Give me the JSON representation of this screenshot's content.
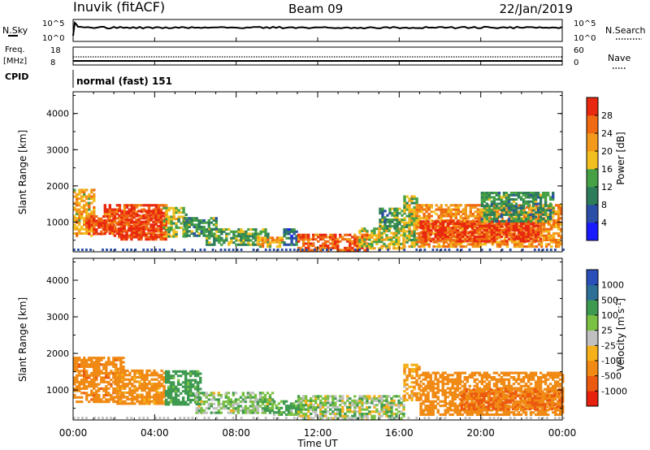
{
  "header": {
    "station": "Inuvik (fitACF)",
    "beam": "Beam 09",
    "date": "22/Jan/2019"
  },
  "top_panels": {
    "nsky_label": "N.Sky",
    "nsearch_label": "N.Search",
    "nsky_ticks": [
      "10^5",
      "10^0"
    ],
    "nsearch_ticks": [
      "10^5",
      "10^0"
    ],
    "freq_label": "Freq.",
    "freq_unit": "[MHz]",
    "freq_ticks": [
      "18",
      "8"
    ],
    "nave_label": "Nave",
    "nave_ticks": [
      "60",
      "0"
    ],
    "cpid_label": "CPID",
    "cpid_value": "normal (fast) 151"
  },
  "x_axis": {
    "label": "Time UT",
    "ticks": [
      "00:00",
      "04:00",
      "08:00",
      "12:00",
      "16:00",
      "20:00",
      "00:00"
    ]
  },
  "colors": {
    "power": [
      "#1a1aff",
      "#2b4fa6",
      "#2e7d5a",
      "#46a146",
      "#f2c01e",
      "#f39a1c",
      "#ef6a12",
      "#e8280f"
    ],
    "velocity": [
      "#e8200e",
      "#ec5a10",
      "#f08a14",
      "#f5b01a",
      "#c0c0c0",
      "#7ac043",
      "#3e9a50",
      "#2d6f96",
      "#2a4fb8"
    ]
  },
  "chart_data": [
    {
      "type": "heatmap",
      "title": "",
      "xlabel": "Time UT",
      "ylabel": "Slant Range [km]",
      "xlim": [
        0,
        24
      ],
      "ylim": [
        180,
        4600
      ],
      "yticks": [
        "1000",
        "2000",
        "3000",
        "4000"
      ],
      "colorbar": {
        "label": "Power [dB]",
        "ticks": [
          "4",
          "8",
          "12",
          "16",
          "20",
          "24",
          "28"
        ],
        "range": [
          0,
          32
        ]
      },
      "regions": [
        {
          "t": [
            0.0,
            1.0
          ],
          "r": [
            600,
            1900
          ],
          "value": 20
        },
        {
          "t": [
            0.6,
            2.0
          ],
          "r": [
            650,
            1150
          ],
          "value": 29
        },
        {
          "t": [
            1.5,
            4.6
          ],
          "r": [
            600,
            1500
          ],
          "value": 27
        },
        {
          "t": [
            2.2,
            4.5
          ],
          "r": [
            500,
            1300
          ],
          "value": 30
        },
        {
          "t": [
            4.4,
            5.6
          ],
          "r": [
            580,
            1400
          ],
          "value": 16
        },
        {
          "t": [
            5.4,
            7.0
          ],
          "r": [
            600,
            1100
          ],
          "value": 12
        },
        {
          "t": [
            6.5,
            9.5
          ],
          "r": [
            350,
            800
          ],
          "value": 13
        },
        {
          "t": [
            9.0,
            10.3
          ],
          "r": [
            300,
            600
          ],
          "value": 20
        },
        {
          "t": [
            10.3,
            11.0
          ],
          "r": [
            350,
            800
          ],
          "value": 8
        },
        {
          "t": [
            11.0,
            14.4
          ],
          "r": [
            200,
            650
          ],
          "value": 27
        },
        {
          "t": [
            14.0,
            16.2
          ],
          "r": [
            250,
            800
          ],
          "value": 18
        },
        {
          "t": [
            15.0,
            16.2
          ],
          "r": [
            800,
            1400
          ],
          "value": 12
        },
        {
          "t": [
            16.2,
            16.9
          ],
          "r": [
            300,
            1700
          ],
          "value": 16
        },
        {
          "t": [
            16.8,
            24.0
          ],
          "r": [
            300,
            1500
          ],
          "value": 23
        },
        {
          "t": [
            17.0,
            23.0
          ],
          "r": [
            450,
            1050
          ],
          "value": 29
        },
        {
          "t": [
            20.0,
            23.5
          ],
          "r": [
            1000,
            1800
          ],
          "value": 12
        }
      ]
    },
    {
      "type": "heatmap",
      "title": "",
      "xlabel": "Time UT",
      "ylabel": "Slant Range [km]",
      "xlim": [
        0,
        24
      ],
      "ylim": [
        180,
        4600
      ],
      "yticks": [
        "1000",
        "2000",
        "3000",
        "4000"
      ],
      "colorbar": {
        "label": "Velocity [m s-1]",
        "label_main": "Velocity [m s",
        "label_sup": "-1",
        "label_end": "]",
        "ticks": [
          "-1000",
          "-500",
          "-100",
          "-25",
          "25",
          "100",
          "500",
          "1000"
        ]
      },
      "regions": [
        {
          "t": [
            0.0,
            2.5
          ],
          "r": [
            650,
            1900
          ],
          "value": -350
        },
        {
          "t": [
            2.0,
            4.5
          ],
          "r": [
            600,
            1550
          ],
          "value": -180
        },
        {
          "t": [
            4.5,
            6.2
          ],
          "r": [
            580,
            1500
          ],
          "value": 180
        },
        {
          "t": [
            6.0,
            9.8
          ],
          "r": [
            350,
            900
          ],
          "value": 60
        },
        {
          "t": [
            9.8,
            11.2
          ],
          "r": [
            300,
            700
          ],
          "value": 120
        },
        {
          "t": [
            11.0,
            16.2
          ],
          "r": [
            200,
            850
          ],
          "value": 40
        },
        {
          "t": [
            16.2,
            17.0
          ],
          "r": [
            700,
            1700
          ],
          "value": -120
        },
        {
          "t": [
            17.0,
            24.0
          ],
          "r": [
            300,
            1500
          ],
          "value": -300
        },
        {
          "t": [
            19.0,
            24.0
          ],
          "r": [
            450,
            1000
          ],
          "value": -500
        }
      ]
    }
  ]
}
